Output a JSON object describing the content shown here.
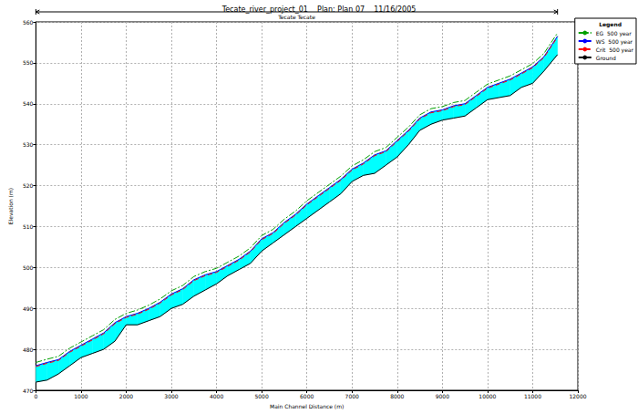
{
  "chart_data": {
    "type": "line",
    "title": "Tecate_river_project_01    Plan: Plan 07    11/16/2005",
    "reach": {
      "label": "Tecate Tecate",
      "start": 0,
      "end": 11550
    },
    "x_label": "Main Channel Distance (m)",
    "y_label": "Elevation (m)",
    "legend_title": "Legend",
    "legend": "upper right",
    "grid": true,
    "x": [
      0,
      250,
      500,
      750,
      1000,
      1250,
      1500,
      1750,
      2000,
      2250,
      2500,
      2750,
      3000,
      3250,
      3500,
      3750,
      4000,
      4250,
      4500,
      4750,
      5000,
      5250,
      5500,
      5750,
      6000,
      6250,
      6500,
      6750,
      7000,
      7250,
      7500,
      7750,
      8000,
      8250,
      8500,
      8750,
      9000,
      9250,
      9500,
      9750,
      10000,
      10250,
      10500,
      10750,
      11000,
      11250,
      11550
    ],
    "series": [
      {
        "name": "EG  500 year",
        "color": "#00a000",
        "line_style": "dashdot",
        "type": "line",
        "values": [
          476.8,
          477.6,
          478.3,
          480.3,
          481.8,
          483.3,
          484.8,
          487.3,
          488.8,
          489.6,
          490.8,
          492.3,
          494.3,
          495.6,
          497.8,
          499,
          499.8,
          501.3,
          502.8,
          504.8,
          507.8,
          509.3,
          511.8,
          513.8,
          516.3,
          518.3,
          520.3,
          522.3,
          524.8,
          526.3,
          528.3,
          529.3,
          531.8,
          534.3,
          537.3,
          538.8,
          539.3,
          540.3,
          540.8,
          542.8,
          544.8,
          545.8,
          546.8,
          548.3,
          549.8,
          552.3,
          557.3
        ]
      },
      {
        "name": "WS  500 year",
        "color": "#0000ff",
        "line_style": "solid",
        "type": "area",
        "values": [
          476,
          476.8,
          477.5,
          479.5,
          481,
          482.5,
          484,
          486.5,
          488,
          488.8,
          490,
          491.5,
          493.5,
          494.8,
          497,
          498.2,
          499,
          500.5,
          502,
          504,
          507,
          508.5,
          511,
          513,
          515.5,
          517.5,
          519.5,
          521.5,
          524,
          525.5,
          527.5,
          528.5,
          531,
          533.5,
          536.5,
          538,
          538.5,
          539.5,
          540,
          542,
          544,
          545,
          546,
          547.5,
          549,
          551.5,
          556.5
        ]
      },
      {
        "name": "Crit  500 year",
        "color": "#ff0000",
        "line_style": "dashed",
        "type": "line",
        "values": [
          475.8,
          476.6,
          477.3,
          479.3,
          480.8,
          482.3,
          483.8,
          486.3,
          487.8,
          488.6,
          489.8,
          491.3,
          493.3,
          494.6,
          496.8,
          498,
          498.8,
          500.3,
          501.8,
          503.8,
          506.8,
          508.3,
          510.8,
          512.8,
          515.3,
          517.3,
          519.3,
          521.3,
          523.8,
          525.3,
          527.3,
          528.3,
          530.8,
          533.3,
          536.3,
          537.8,
          538.3,
          539.3,
          539.8,
          541.8,
          543.8,
          544.8,
          545.8,
          547.3,
          548.8,
          551.3,
          556.3
        ]
      },
      {
        "name": "Ground",
        "color": "#000000",
        "line_style": "solid",
        "type": "line",
        "values": [
          472,
          472.5,
          474,
          476,
          478,
          479,
          480,
          482,
          486,
          486,
          487,
          488,
          490,
          491,
          493,
          494.5,
          496,
          498,
          499.5,
          501,
          504,
          506,
          508,
          510,
          512,
          514,
          516,
          518,
          521,
          522.5,
          523,
          525,
          527,
          530,
          533.5,
          535,
          536,
          536.5,
          537,
          539,
          541,
          541.5,
          542,
          544,
          545,
          548,
          552
        ]
      }
    ],
    "xlim": [
      0,
      12000
    ],
    "xticks": [
      0,
      1000,
      2000,
      3000,
      4000,
      5000,
      6000,
      7000,
      8000,
      9000,
      10000,
      11000,
      12000
    ],
    "ylim": [
      470,
      560
    ],
    "yticks": [
      470,
      480,
      490,
      500,
      510,
      520,
      530,
      540,
      550,
      560
    ]
  }
}
